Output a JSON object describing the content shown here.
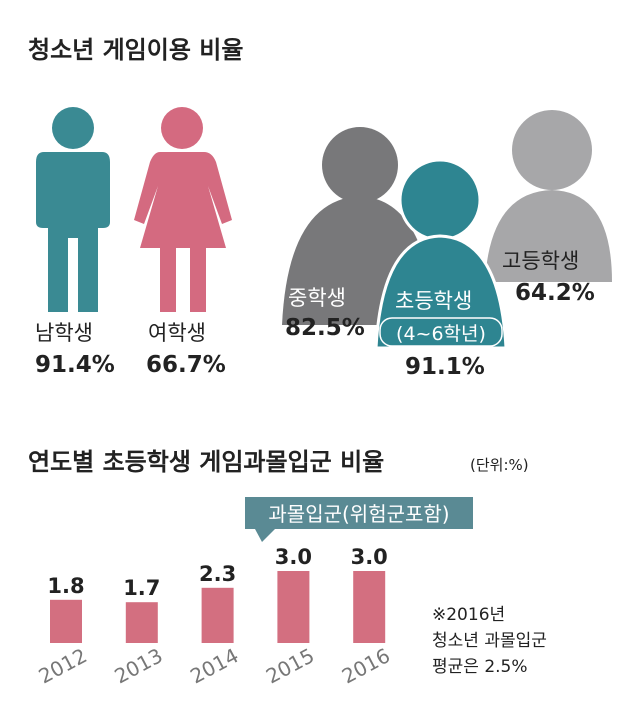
{
  "usage": {
    "title": "청소년 게임이용 비율",
    "people": [
      {
        "label": "남학생",
        "value": "91.4%"
      },
      {
        "label": "여학생",
        "value": "66.7%"
      }
    ],
    "students": [
      {
        "label": "중학생",
        "value": "82.5%"
      },
      {
        "label": "초등학생",
        "sublabel": "(4~6학년)",
        "value": "91.1%"
      },
      {
        "label": "고등학생",
        "value": "64.2%"
      }
    ]
  },
  "chart_data": {
    "type": "bar",
    "title": "연도별 초등학생 게임과몰입군 비율",
    "unit": "(단위:%)",
    "categories": [
      "2012",
      "2013",
      "2014",
      "2015",
      "2016"
    ],
    "series": [
      {
        "name": "과몰입군(위험군포함)",
        "color": "#d36f80",
        "values": [
          1.8,
          1.7,
          2.3,
          3.0,
          3.0
        ],
        "value_labels": [
          "1.8",
          "1.7",
          "2.3",
          "3.0",
          "3.0"
        ]
      }
    ],
    "note": [
      "※2016년",
      "청소년 과몰입군",
      "평균은 2.5%"
    ]
  }
}
